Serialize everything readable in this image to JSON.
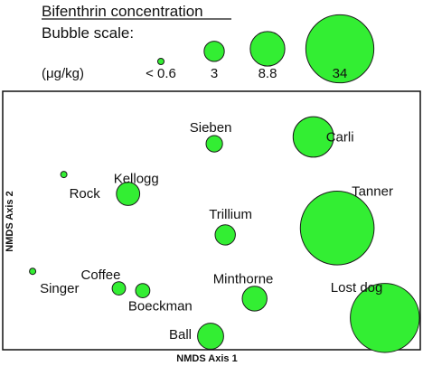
{
  "chart_data": {
    "type": "scatter",
    "title": "Bifenthrin concentration",
    "xlabel": "NMDS Axis 1",
    "ylabel": "NMDS Axis 2",
    "grid": false,
    "point_color": "#33ee33",
    "legend": {
      "caption": "Bubble scale:",
      "unit": "(μg/kg)",
      "placement": "top",
      "entries": [
        {
          "label": "< 0.6",
          "value": 0.3
        },
        {
          "label": "3",
          "value": 3
        },
        {
          "label": "8.8",
          "value": 8.8
        },
        {
          "label": "34",
          "value": 34
        }
      ]
    },
    "points": [
      {
        "name": "Sieben",
        "value": 2,
        "x": 0.02,
        "y": 0.69
      },
      {
        "name": "Carli",
        "value": 12,
        "x": 0.56,
        "y": 0.75
      },
      {
        "name": "Rock",
        "value": 0.3,
        "x": -0.8,
        "y": 0.42
      },
      {
        "name": "Kellogg",
        "value": 4,
        "x": -0.45,
        "y": 0.25
      },
      {
        "name": "Trillium",
        "value": 3,
        "x": 0.08,
        "y": -0.11
      },
      {
        "name": "Tanner",
        "value": 40,
        "x": 0.69,
        "y": -0.05
      },
      {
        "name": "Singer",
        "value": 0.3,
        "x": -0.97,
        "y": -0.43
      },
      {
        "name": "Coffee",
        "value": 1.3,
        "x": -0.5,
        "y": -0.58
      },
      {
        "name": "Boeckman",
        "value": 1.5,
        "x": -0.37,
        "y": -0.6
      },
      {
        "name": "Minthorne",
        "value": 4.5,
        "x": 0.24,
        "y": -0.67
      },
      {
        "name": "Lost dog",
        "value": 35,
        "x": 0.95,
        "y": -0.84
      },
      {
        "name": "Ball",
        "value": 5,
        "x": 0.0,
        "y": -1.0
      }
    ]
  }
}
